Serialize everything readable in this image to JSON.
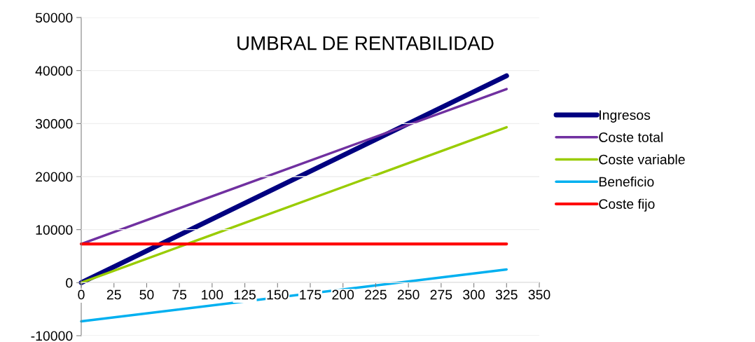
{
  "chart_data": {
    "type": "line",
    "title": "UMBRAL DE RENTABILIDAD",
    "x": [
      0,
      325
    ],
    "series": [
      {
        "name": "Ingresos",
        "color": "#000080",
        "values": [
          0,
          39000
        ]
      },
      {
        "name": "Coste total",
        "color": "#7030a0",
        "values": [
          7300,
          36500
        ]
      },
      {
        "name": "Coste variable",
        "color": "#99cc00",
        "values": [
          0,
          29300
        ]
      },
      {
        "name": "Beneficio",
        "color": "#00b0f0",
        "values": [
          -7300,
          2500
        ]
      },
      {
        "name": "Coste fijo",
        "color": "#ff0000",
        "values": [
          7300,
          7300
        ]
      }
    ],
    "xlim": [
      0,
      350
    ],
    "xticks": [
      0,
      25,
      50,
      75,
      100,
      125,
      150,
      175,
      200,
      225,
      250,
      275,
      300,
      325,
      350
    ],
    "ylim": [
      -10000,
      50000
    ],
    "yticks": [
      -10000,
      0,
      10000,
      20000,
      30000,
      40000,
      50000
    ],
    "grid": "y",
    "legend": "right",
    "marker": "none",
    "line_style": "solid"
  }
}
